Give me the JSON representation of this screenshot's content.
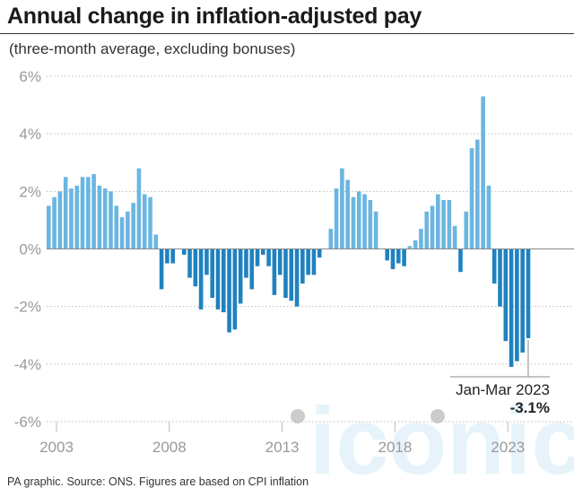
{
  "header": {
    "title": "Annual change in inflation-adjusted pay",
    "subtitle": "(three-month average, excluding bonuses)"
  },
  "footer": {
    "source": "PA graphic. Source: ONS. Figures are based on CPI inflation"
  },
  "watermark": {
    "text": "iconic"
  },
  "colors": {
    "positive": "#6bb6e0",
    "negative": "#1f82c0",
    "grid": "#bbbbbb",
    "zero_line": "#888888",
    "tick_text": "#999999",
    "watermark": "#e6f3fa"
  },
  "chart_data": {
    "type": "bar",
    "ylabel": "",
    "xlabel": "",
    "ylim": [
      -6,
      6
    ],
    "grid": true,
    "y_ticks": [
      {
        "value": 6,
        "label": "6%"
      },
      {
        "value": 4,
        "label": "4%"
      },
      {
        "value": 2,
        "label": "2%"
      },
      {
        "value": 0,
        "label": "0%"
      },
      {
        "value": -2,
        "label": "-2%"
      },
      {
        "value": -4,
        "label": "-4%"
      },
      {
        "value": -6,
        "label": "-6%"
      }
    ],
    "x_ticks": [
      {
        "index": 0,
        "label": "2003"
      },
      {
        "index": 20,
        "label": "2008"
      },
      {
        "index": 40,
        "label": "2013"
      },
      {
        "index": 60,
        "label": "2018"
      },
      {
        "index": 80,
        "label": "2023"
      }
    ],
    "values": [
      1.5,
      1.8,
      2.0,
      2.5,
      2.1,
      2.2,
      2.5,
      2.5,
      2.6,
      2.2,
      2.1,
      2.0,
      1.5,
      1.1,
      1.3,
      1.6,
      2.8,
      1.9,
      1.8,
      0.5,
      -1.4,
      -0.5,
      -0.5,
      0.0,
      -0.2,
      -1.0,
      -1.3,
      -2.1,
      -0.9,
      -1.7,
      -2.1,
      -2.2,
      -2.9,
      -2.8,
      -1.9,
      -1.0,
      -1.4,
      -0.6,
      -0.2,
      -0.6,
      -1.6,
      -0.9,
      -1.7,
      -1.8,
      -2.0,
      -1.2,
      -0.9,
      -0.9,
      -0.3,
      0.0,
      0.7,
      2.1,
      2.8,
      2.4,
      1.8,
      2.0,
      1.9,
      1.7,
      1.3,
      0.0,
      -0.4,
      -0.7,
      -0.5,
      -0.6,
      0.1,
      0.3,
      0.7,
      1.3,
      1.5,
      1.9,
      1.7,
      1.7,
      0.8,
      -0.8,
      1.3,
      3.5,
      3.8,
      5.3,
      2.2,
      -1.2,
      -2.0,
      -3.2,
      -4.1,
      -3.9,
      -3.6,
      -3.1
    ],
    "annotation": {
      "index": 85,
      "label": "Jan-Mar 2023",
      "value_label": "-3.1%"
    }
  }
}
